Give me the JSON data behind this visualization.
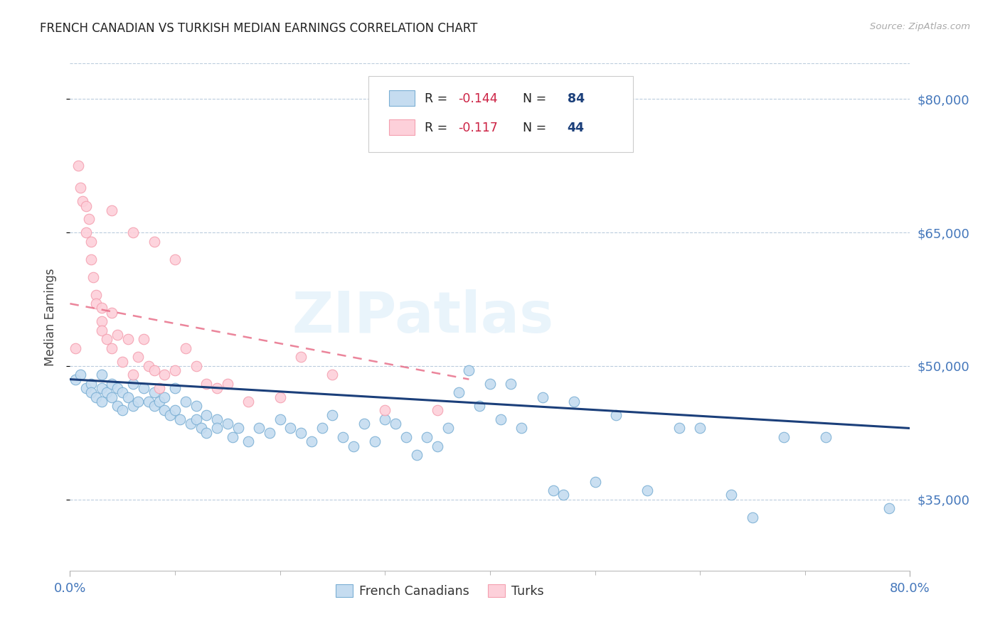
{
  "title": "FRENCH CANADIAN VS TURKISH MEDIAN EARNINGS CORRELATION CHART",
  "source": "Source: ZipAtlas.com",
  "ylabel": "Median Earnings",
  "watermark": "ZIPatlas",
  "y_ticks": [
    35000,
    50000,
    65000,
    80000
  ],
  "y_tick_labels": [
    "$35,000",
    "$50,000",
    "$65,000",
    "$80,000"
  ],
  "y_min": 27000,
  "y_max": 84000,
  "x_min": 0.0,
  "x_max": 0.8,
  "blue_color": "#7BAFD4",
  "pink_color": "#F4A0B0",
  "blue_fill": "#C5DCF0",
  "pink_fill": "#FDD0DA",
  "line_blue": "#1B3F7A",
  "line_pink": "#E8708A",
  "axis_color": "#4477BB",
  "r_color": "#CC2244",
  "n_color": "#1B3F7A",
  "french_canadians_x": [
    0.005,
    0.01,
    0.015,
    0.02,
    0.02,
    0.025,
    0.03,
    0.03,
    0.03,
    0.035,
    0.04,
    0.04,
    0.045,
    0.045,
    0.05,
    0.05,
    0.055,
    0.06,
    0.06,
    0.065,
    0.07,
    0.075,
    0.08,
    0.08,
    0.085,
    0.09,
    0.09,
    0.095,
    0.1,
    0.1,
    0.105,
    0.11,
    0.115,
    0.12,
    0.12,
    0.125,
    0.13,
    0.13,
    0.14,
    0.14,
    0.15,
    0.155,
    0.16,
    0.17,
    0.18,
    0.19,
    0.2,
    0.21,
    0.22,
    0.23,
    0.24,
    0.25,
    0.26,
    0.27,
    0.28,
    0.29,
    0.3,
    0.31,
    0.32,
    0.33,
    0.34,
    0.35,
    0.36,
    0.37,
    0.38,
    0.39,
    0.4,
    0.41,
    0.42,
    0.43,
    0.45,
    0.46,
    0.47,
    0.48,
    0.5,
    0.52,
    0.55,
    0.58,
    0.6,
    0.63,
    0.65,
    0.68,
    0.72,
    0.78
  ],
  "french_canadians_y": [
    48500,
    49000,
    47500,
    48000,
    47000,
    46500,
    49000,
    47500,
    46000,
    47000,
    48000,
    46500,
    47500,
    45500,
    47000,
    45000,
    46500,
    48000,
    45500,
    46000,
    47500,
    46000,
    47000,
    45500,
    46000,
    45000,
    46500,
    44500,
    47500,
    45000,
    44000,
    46000,
    43500,
    45500,
    44000,
    43000,
    44500,
    42500,
    44000,
    43000,
    43500,
    42000,
    43000,
    41500,
    43000,
    42500,
    44000,
    43000,
    42500,
    41500,
    43000,
    44500,
    42000,
    41000,
    43500,
    41500,
    44000,
    43500,
    42000,
    40000,
    42000,
    41000,
    43000,
    47000,
    49500,
    45500,
    48000,
    44000,
    48000,
    43000,
    46500,
    36000,
    35500,
    46000,
    37000,
    44500,
    36000,
    43000,
    43000,
    35500,
    33000,
    42000,
    42000,
    34000
  ],
  "turks_x": [
    0.005,
    0.008,
    0.01,
    0.012,
    0.015,
    0.015,
    0.018,
    0.02,
    0.02,
    0.022,
    0.025,
    0.025,
    0.03,
    0.03,
    0.03,
    0.035,
    0.04,
    0.04,
    0.045,
    0.05,
    0.055,
    0.06,
    0.065,
    0.07,
    0.075,
    0.08,
    0.085,
    0.09,
    0.1,
    0.11,
    0.12,
    0.13,
    0.14,
    0.15,
    0.17,
    0.2,
    0.22,
    0.25,
    0.3,
    0.35,
    0.04,
    0.06,
    0.08,
    0.1
  ],
  "turks_y": [
    52000,
    72500,
    70000,
    68500,
    68000,
    65000,
    66500,
    64000,
    62000,
    60000,
    58000,
    57000,
    56500,
    55000,
    54000,
    53000,
    52000,
    56000,
    53500,
    50500,
    53000,
    49000,
    51000,
    53000,
    50000,
    49500,
    47500,
    49000,
    49500,
    52000,
    50000,
    48000,
    47500,
    48000,
    46000,
    46500,
    51000,
    49000,
    45000,
    45000,
    67500,
    65000,
    64000,
    62000
  ],
  "blue_trend_x": [
    0.0,
    0.8
  ],
  "blue_trend_y": [
    48500,
    43000
  ],
  "pink_trend_x": [
    0.0,
    0.38
  ],
  "pink_trend_y": [
    57000,
    48500
  ]
}
